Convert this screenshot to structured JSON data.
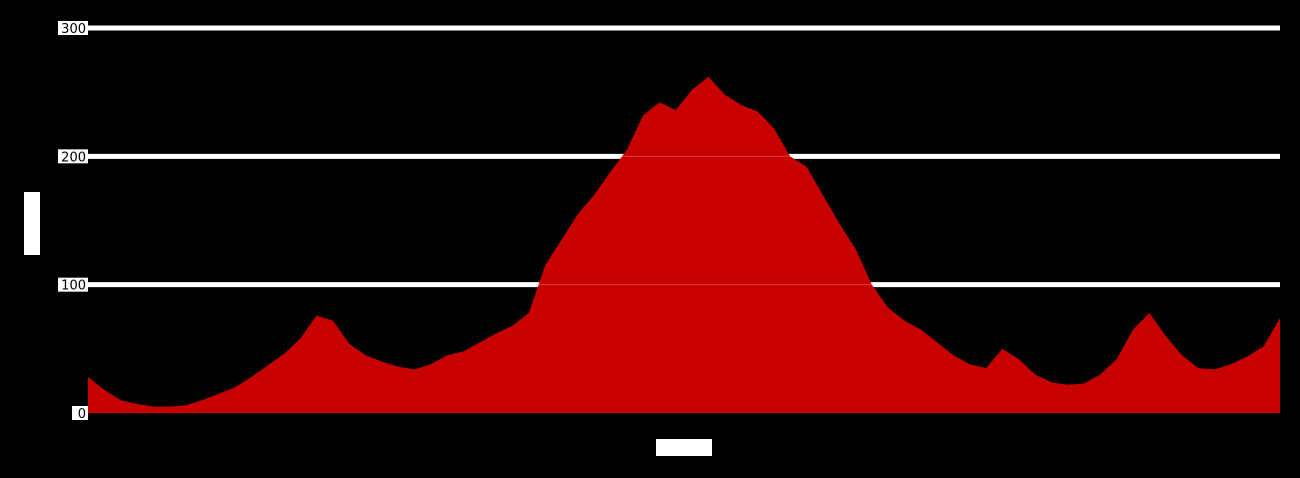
{
  "chart_data": {
    "type": "area",
    "title": "",
    "xlabel": "",
    "ylabel": "",
    "ylim": [
      0,
      300
    ],
    "yticks": [
      0,
      100,
      200,
      300
    ],
    "grid": true,
    "legend": "none",
    "colors": {
      "background": "#000000",
      "area": "#c80000",
      "grid": "#ffffff",
      "label_box": "#ffffff"
    },
    "series": [
      {
        "values": [
          28,
          18,
          10,
          7,
          5,
          5,
          6,
          10,
          15,
          20,
          28,
          37,
          46,
          58,
          76,
          72,
          54,
          45,
          40,
          36,
          34,
          38,
          45,
          48,
          55,
          62,
          68,
          78,
          115,
          135,
          155,
          170,
          188,
          205,
          232,
          242,
          236,
          252,
          262,
          248,
          240,
          235,
          222,
          200,
          192,
          170,
          148,
          128,
          100,
          82,
          72,
          65,
          55,
          45,
          38,
          35,
          50,
          42,
          30,
          24,
          22,
          23,
          30,
          42,
          65,
          78,
          60,
          45,
          35,
          34,
          38,
          44,
          52,
          74
        ]
      }
    ]
  }
}
